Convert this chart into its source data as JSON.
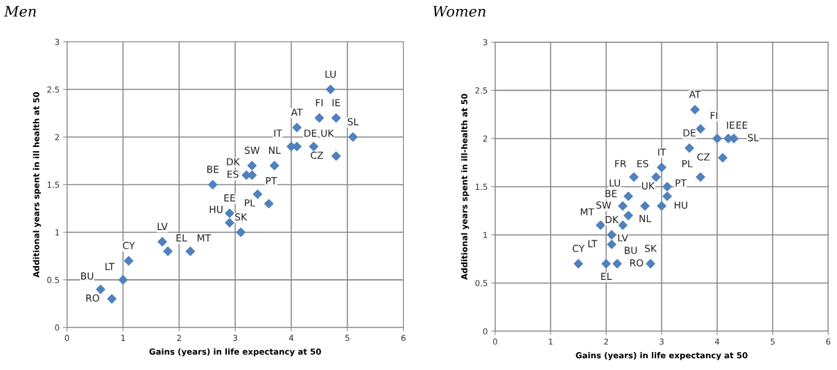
{
  "chart_data": [
    {
      "type": "scatter",
      "title": "Men",
      "xlabel": "Gains (years) in life expectancy at 50",
      "ylabel": "Additional years spent in ill health at 50",
      "x": [
        4.7,
        4.5,
        4.8,
        4.1,
        5.1,
        4.0,
        4.1,
        4.4,
        4.8,
        3.3,
        3.7,
        3.2,
        3.3,
        3.4,
        3.6,
        2.6,
        2.9,
        2.9,
        3.1,
        1.7,
        1.8,
        2.2,
        1.1,
        1.0,
        0.6,
        0.8
      ],
      "series": [
        {
          "color": "#4f81bd",
          "values": [
            2.5,
            2.2,
            2.2,
            2.1,
            2.0,
            1.9,
            1.9,
            1.9,
            1.8,
            1.7,
            1.7,
            1.6,
            1.6,
            1.4,
            1.3,
            1.5,
            1.2,
            1.1,
            1.0,
            0.9,
            0.8,
            0.8,
            0.7,
            0.5,
            0.4,
            0.3
          ]
        }
      ],
      "annotations": [
        {
          "text": "LU",
          "x": 4.7,
          "y": 2.5
        },
        {
          "text": "FI",
          "x": 4.5,
          "y": 2.2
        },
        {
          "text": "IE",
          "x": 4.8,
          "y": 2.2
        },
        {
          "text": "AT",
          "x": 4.1,
          "y": 2.1
        },
        {
          "text": "SL",
          "x": 5.1,
          "y": 2.0
        },
        {
          "text": "IT",
          "x": 4.0,
          "y": 1.9
        },
        {
          "text": "DE",
          "x": 4.1,
          "y": 1.9
        },
        {
          "text": "UK",
          "x": 4.4,
          "y": 1.9
        },
        {
          "text": "CZ",
          "x": 4.8,
          "y": 1.8
        },
        {
          "text": "SW",
          "x": 3.3,
          "y": 1.7
        },
        {
          "text": "NL",
          "x": 3.7,
          "y": 1.7
        },
        {
          "text": "DK",
          "x": 3.2,
          "y": 1.6
        },
        {
          "text": "ES",
          "x": 3.3,
          "y": 1.6
        },
        {
          "text": "PT",
          "x": 3.4,
          "y": 1.4
        },
        {
          "text": "PL",
          "x": 3.6,
          "y": 1.3
        },
        {
          "text": "BE",
          "x": 2.6,
          "y": 1.5
        },
        {
          "text": "EE",
          "x": 2.9,
          "y": 1.2
        },
        {
          "text": "HU",
          "x": 2.9,
          "y": 1.1
        },
        {
          "text": "SK",
          "x": 3.1,
          "y": 1.0
        },
        {
          "text": "LV",
          "x": 1.7,
          "y": 0.9
        },
        {
          "text": "EL",
          "x": 1.8,
          "y": 0.8
        },
        {
          "text": "MT",
          "x": 2.2,
          "y": 0.8
        },
        {
          "text": "CY",
          "x": 1.1,
          "y": 0.7
        },
        {
          "text": "LT",
          "x": 1.0,
          "y": 0.5
        },
        {
          "text": "BU",
          "x": 0.6,
          "y": 0.4
        },
        {
          "text": "RO",
          "x": 0.8,
          "y": 0.3
        }
      ],
      "xlim": [
        0,
        6
      ],
      "xticks": [
        0,
        1,
        2,
        3,
        4,
        5,
        6
      ],
      "ylim": [
        0,
        3
      ],
      "yticks": [
        0,
        0.5,
        1,
        1.5,
        2,
        2.5,
        3
      ],
      "grid": true,
      "marker": "diamond",
      "legend": false
    },
    {
      "type": "scatter",
      "title": "Women",
      "xlabel": "Gains (years) in life expectancy at 50",
      "ylabel": "Additional years spent in ill-health at 50",
      "x": [
        3.6,
        3.7,
        4.0,
        4.2,
        4.3,
        4.1,
        3.5,
        3.7,
        3.0,
        2.9,
        2.5,
        3.1,
        3.1,
        3.0,
        2.7,
        2.4,
        2.3,
        2.4,
        2.3,
        1.9,
        2.1,
        2.1,
        1.5,
        2.0,
        2.2,
        2.8
      ],
      "series": [
        {
          "color": "#4f81bd",
          "values": [
            2.3,
            2.1,
            2.0,
            2.0,
            2.0,
            1.8,
            1.9,
            1.6,
            1.7,
            1.6,
            1.6,
            1.5,
            1.4,
            1.3,
            1.3,
            1.4,
            1.3,
            1.2,
            1.1,
            1.1,
            1.0,
            0.9,
            0.7,
            0.7,
            0.7,
            0.7
          ]
        }
      ],
      "annotations": [
        {
          "text": "AT",
          "x": 3.6,
          "y": 2.3
        },
        {
          "text": "FI",
          "x": 3.7,
          "y": 2.1
        },
        {
          "text": "IE",
          "x": 4.0,
          "y": 2.0
        },
        {
          "text": "EE",
          "x": 4.2,
          "y": 2.0
        },
        {
          "text": "SL",
          "x": 4.3,
          "y": 2.0
        },
        {
          "text": "CZ",
          "x": 4.1,
          "y": 1.8
        },
        {
          "text": "DE",
          "x": 3.5,
          "y": 1.9
        },
        {
          "text": "PL",
          "x": 3.7,
          "y": 1.6
        },
        {
          "text": "IT",
          "x": 3.0,
          "y": 1.7
        },
        {
          "text": "ES",
          "x": 2.9,
          "y": 1.6
        },
        {
          "text": "FR",
          "x": 2.5,
          "y": 1.6
        },
        {
          "text": "UK",
          "x": 3.1,
          "y": 1.5
        },
        {
          "text": "PT",
          "x": 3.1,
          "y": 1.4
        },
        {
          "text": "HU",
          "x": 3.0,
          "y": 1.3
        },
        {
          "text": "NL",
          "x": 2.7,
          "y": 1.3
        },
        {
          "text": "LU",
          "x": 2.4,
          "y": 1.4
        },
        {
          "text": "SW",
          "x": 2.3,
          "y": 1.3
        },
        {
          "text": "BE",
          "x": 2.4,
          "y": 1.2
        },
        {
          "text": "LV",
          "x": 2.3,
          "y": 1.1
        },
        {
          "text": "MT",
          "x": 1.9,
          "y": 1.1
        },
        {
          "text": "DK",
          "x": 2.1,
          "y": 1.0
        },
        {
          "text": "LT",
          "x": 2.1,
          "y": 0.9
        },
        {
          "text": "CY",
          "x": 1.5,
          "y": 0.7
        },
        {
          "text": "EL",
          "x": 2.0,
          "y": 0.7
        },
        {
          "text": "BU",
          "x": 2.2,
          "y": 0.7
        },
        {
          "text": "RO",
          "x": 2.2,
          "y": 0.7
        },
        {
          "text": "SK",
          "x": 2.8,
          "y": 0.7
        }
      ],
      "xlim": [
        0,
        6
      ],
      "xticks": [
        0,
        1,
        2,
        3,
        4,
        5,
        6
      ],
      "ylim": [
        0,
        3
      ],
      "yticks": [
        0,
        0.5,
        1,
        1.5,
        2,
        2.5,
        3
      ],
      "grid": true,
      "marker": "diamond",
      "legend": false
    }
  ]
}
